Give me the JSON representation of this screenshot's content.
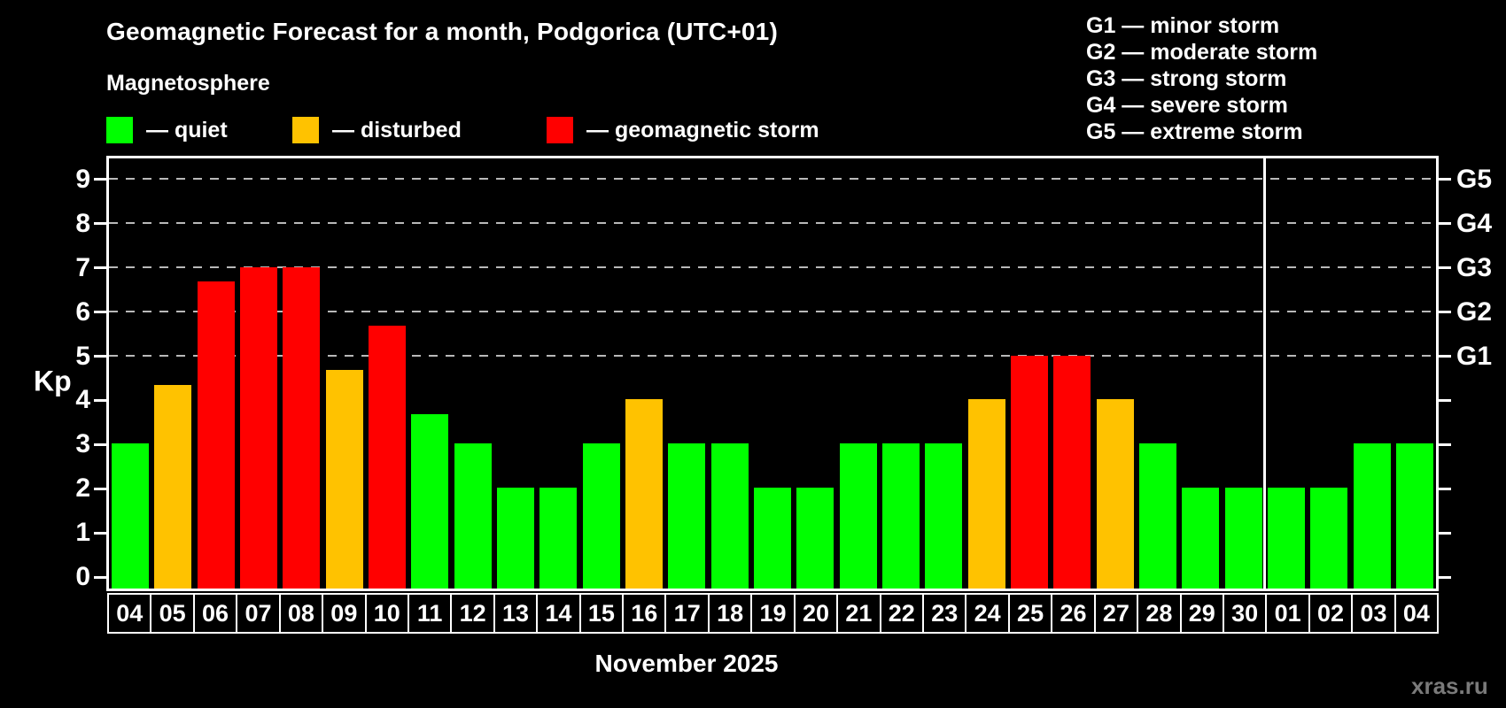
{
  "title": "Geomagnetic Forecast for a month, Podgorica (UTC+01)",
  "subtitle": "Magnetosphere",
  "legend": {
    "quiet": "— quiet",
    "disturbed": "— disturbed",
    "storm": "— geomagnetic storm"
  },
  "status_colors": {
    "quiet": "#00ff00",
    "disturbed": "#ffc200",
    "storm": "#ff0000"
  },
  "g_legend": [
    "G1 — minor storm",
    "G2 — moderate storm",
    "G3 — strong storm",
    "G4 — severe storm",
    "G5 — extreme storm"
  ],
  "y_axis": {
    "label": "Kp",
    "ticks": [
      9,
      8,
      7,
      6,
      5,
      4,
      3,
      2,
      1,
      0
    ]
  },
  "month_label": "November 2025",
  "watermark": "xras.ru",
  "chart_data": {
    "type": "bar",
    "title": "Geomagnetic Forecast for a month, Podgorica (UTC+01)",
    "xlabel": "November 2025",
    "ylabel": "Kp",
    "ylim": [
      0,
      9
    ],
    "grid": "dashed horizontal lines at Kp 5,6,7,8,9 (G1–G5)",
    "legend_position": "top-left",
    "categories": [
      "04",
      "05",
      "06",
      "07",
      "08",
      "09",
      "10",
      "11",
      "12",
      "13",
      "14",
      "15",
      "16",
      "17",
      "18",
      "19",
      "20",
      "21",
      "22",
      "23",
      "24",
      "25",
      "26",
      "27",
      "28",
      "29",
      "30",
      "01",
      "02",
      "03",
      "04"
    ],
    "values": [
      3,
      4.33,
      6.67,
      7,
      7,
      4.67,
      5.67,
      3.67,
      3,
      2,
      2,
      3,
      4,
      3,
      3,
      2,
      2,
      3,
      3,
      3,
      4,
      5,
      5,
      4,
      3,
      2,
      2,
      2,
      2,
      3,
      3
    ],
    "statuses": [
      "quiet",
      "disturbed",
      "storm",
      "storm",
      "storm",
      "disturbed",
      "storm",
      "quiet",
      "quiet",
      "quiet",
      "quiet",
      "quiet",
      "disturbed",
      "quiet",
      "quiet",
      "quiet",
      "quiet",
      "quiet",
      "quiet",
      "quiet",
      "disturbed",
      "storm",
      "storm",
      "disturbed",
      "quiet",
      "quiet",
      "quiet",
      "quiet",
      "quiet",
      "quiet",
      "quiet"
    ],
    "month_split_after": 27,
    "g_levels": [
      {
        "label": "G1",
        "kp": 5
      },
      {
        "label": "G2",
        "kp": 6
      },
      {
        "label": "G3",
        "kp": 7
      },
      {
        "label": "G4",
        "kp": 8
      },
      {
        "label": "G5",
        "kp": 9
      }
    ]
  }
}
